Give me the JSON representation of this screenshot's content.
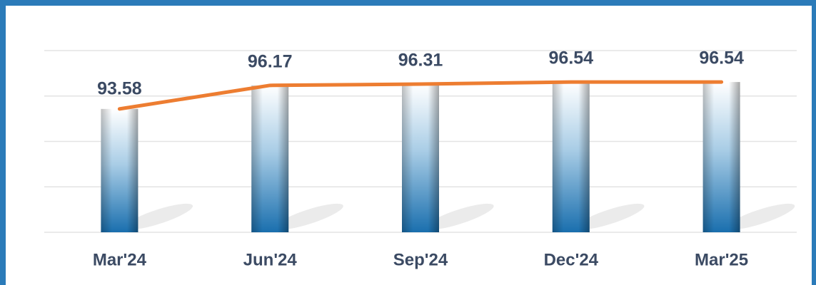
{
  "chart_data": {
    "type": "bar",
    "categories": [
      "Mar'24",
      "Jun'24",
      "Sep'24",
      "Dec'24",
      "Mar'25"
    ],
    "values": [
      93.58,
      96.17,
      96.31,
      96.54,
      96.54
    ],
    "color": "#1f77b8",
    "line_color": "#ed7d31",
    "ylim": [
      80,
      100
    ],
    "yticks": [
      80,
      85,
      90,
      95,
      100
    ],
    "grid": true
  }
}
